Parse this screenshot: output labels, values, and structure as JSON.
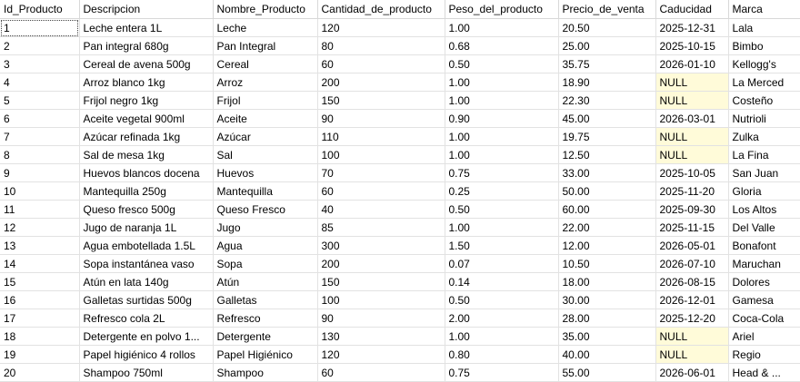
{
  "columns": [
    "Id_Producto",
    "Descripcion",
    "Nombre_Producto",
    "Cantidad_de_producto",
    "Peso_del_producto",
    "Precio_de_venta",
    "Caducidad",
    "Marca"
  ],
  "rows": [
    [
      "1",
      "Leche entera 1L",
      "Leche",
      "120",
      "1.00",
      "20.50",
      "2025-12-31",
      "Lala"
    ],
    [
      "2",
      "Pan integral 680g",
      "Pan Integral",
      "80",
      "0.68",
      "25.00",
      "2025-10-15",
      "Bimbo"
    ],
    [
      "3",
      "Cereal de avena 500g",
      "Cereal",
      "60",
      "0.50",
      "35.75",
      "2026-01-10",
      "Kellogg's"
    ],
    [
      "4",
      "Arroz blanco 1kg",
      "Arroz",
      "200",
      "1.00",
      "18.90",
      "NULL",
      "La Merced"
    ],
    [
      "5",
      "Frijol negro 1kg",
      "Frijol",
      "150",
      "1.00",
      "22.30",
      "NULL",
      "Costeño"
    ],
    [
      "6",
      "Aceite vegetal 900ml",
      "Aceite",
      "90",
      "0.90",
      "45.00",
      "2026-03-01",
      "Nutrioli"
    ],
    [
      "7",
      "Azúcar refinada 1kg",
      "Azúcar",
      "110",
      "1.00",
      "19.75",
      "NULL",
      "Zulka"
    ],
    [
      "8",
      "Sal de mesa 1kg",
      "Sal",
      "100",
      "1.00",
      "12.50",
      "NULL",
      "La Fina"
    ],
    [
      "9",
      "Huevos blancos docena",
      "Huevos",
      "70",
      "0.75",
      "33.00",
      "2025-10-05",
      "San Juan"
    ],
    [
      "10",
      "Mantequilla 250g",
      "Mantequilla",
      "60",
      "0.25",
      "50.00",
      "2025-11-20",
      "Gloria"
    ],
    [
      "11",
      "Queso fresco 500g",
      "Queso Fresco",
      "40",
      "0.50",
      "60.00",
      "2025-09-30",
      "Los Altos"
    ],
    [
      "12",
      "Jugo de naranja 1L",
      "Jugo",
      "85",
      "1.00",
      "22.00",
      "2025-11-15",
      "Del Valle"
    ],
    [
      "13",
      "Agua embotellada 1.5L",
      "Agua",
      "300",
      "1.50",
      "12.00",
      "2026-05-01",
      "Bonafont"
    ],
    [
      "14",
      "Sopa instantánea vaso",
      "Sopa",
      "200",
      "0.07",
      "10.50",
      "2026-07-10",
      "Maruchan"
    ],
    [
      "15",
      "Atún en lata 140g",
      "Atún",
      "150",
      "0.14",
      "18.00",
      "2026-08-15",
      "Dolores"
    ],
    [
      "16",
      "Galletas surtidas 500g",
      "Galletas",
      "100",
      "0.50",
      "30.00",
      "2026-12-01",
      "Gamesa"
    ],
    [
      "17",
      "Refresco cola 2L",
      "Refresco",
      "90",
      "2.00",
      "28.00",
      "2025-12-20",
      "Coca-Cola"
    ],
    [
      "18",
      "Detergente en polvo 1...",
      "Detergente",
      "130",
      "1.00",
      "35.00",
      "NULL",
      "Ariel"
    ],
    [
      "19",
      "Papel higiénico 4 rollos",
      "Papel Higiénico",
      "120",
      "0.80",
      "40.00",
      "NULL",
      "Regio"
    ],
    [
      "20",
      "Shampoo 750ml",
      "Shampoo",
      "60",
      "0.75",
      "55.00",
      "2026-06-01",
      "Head & ..."
    ]
  ]
}
